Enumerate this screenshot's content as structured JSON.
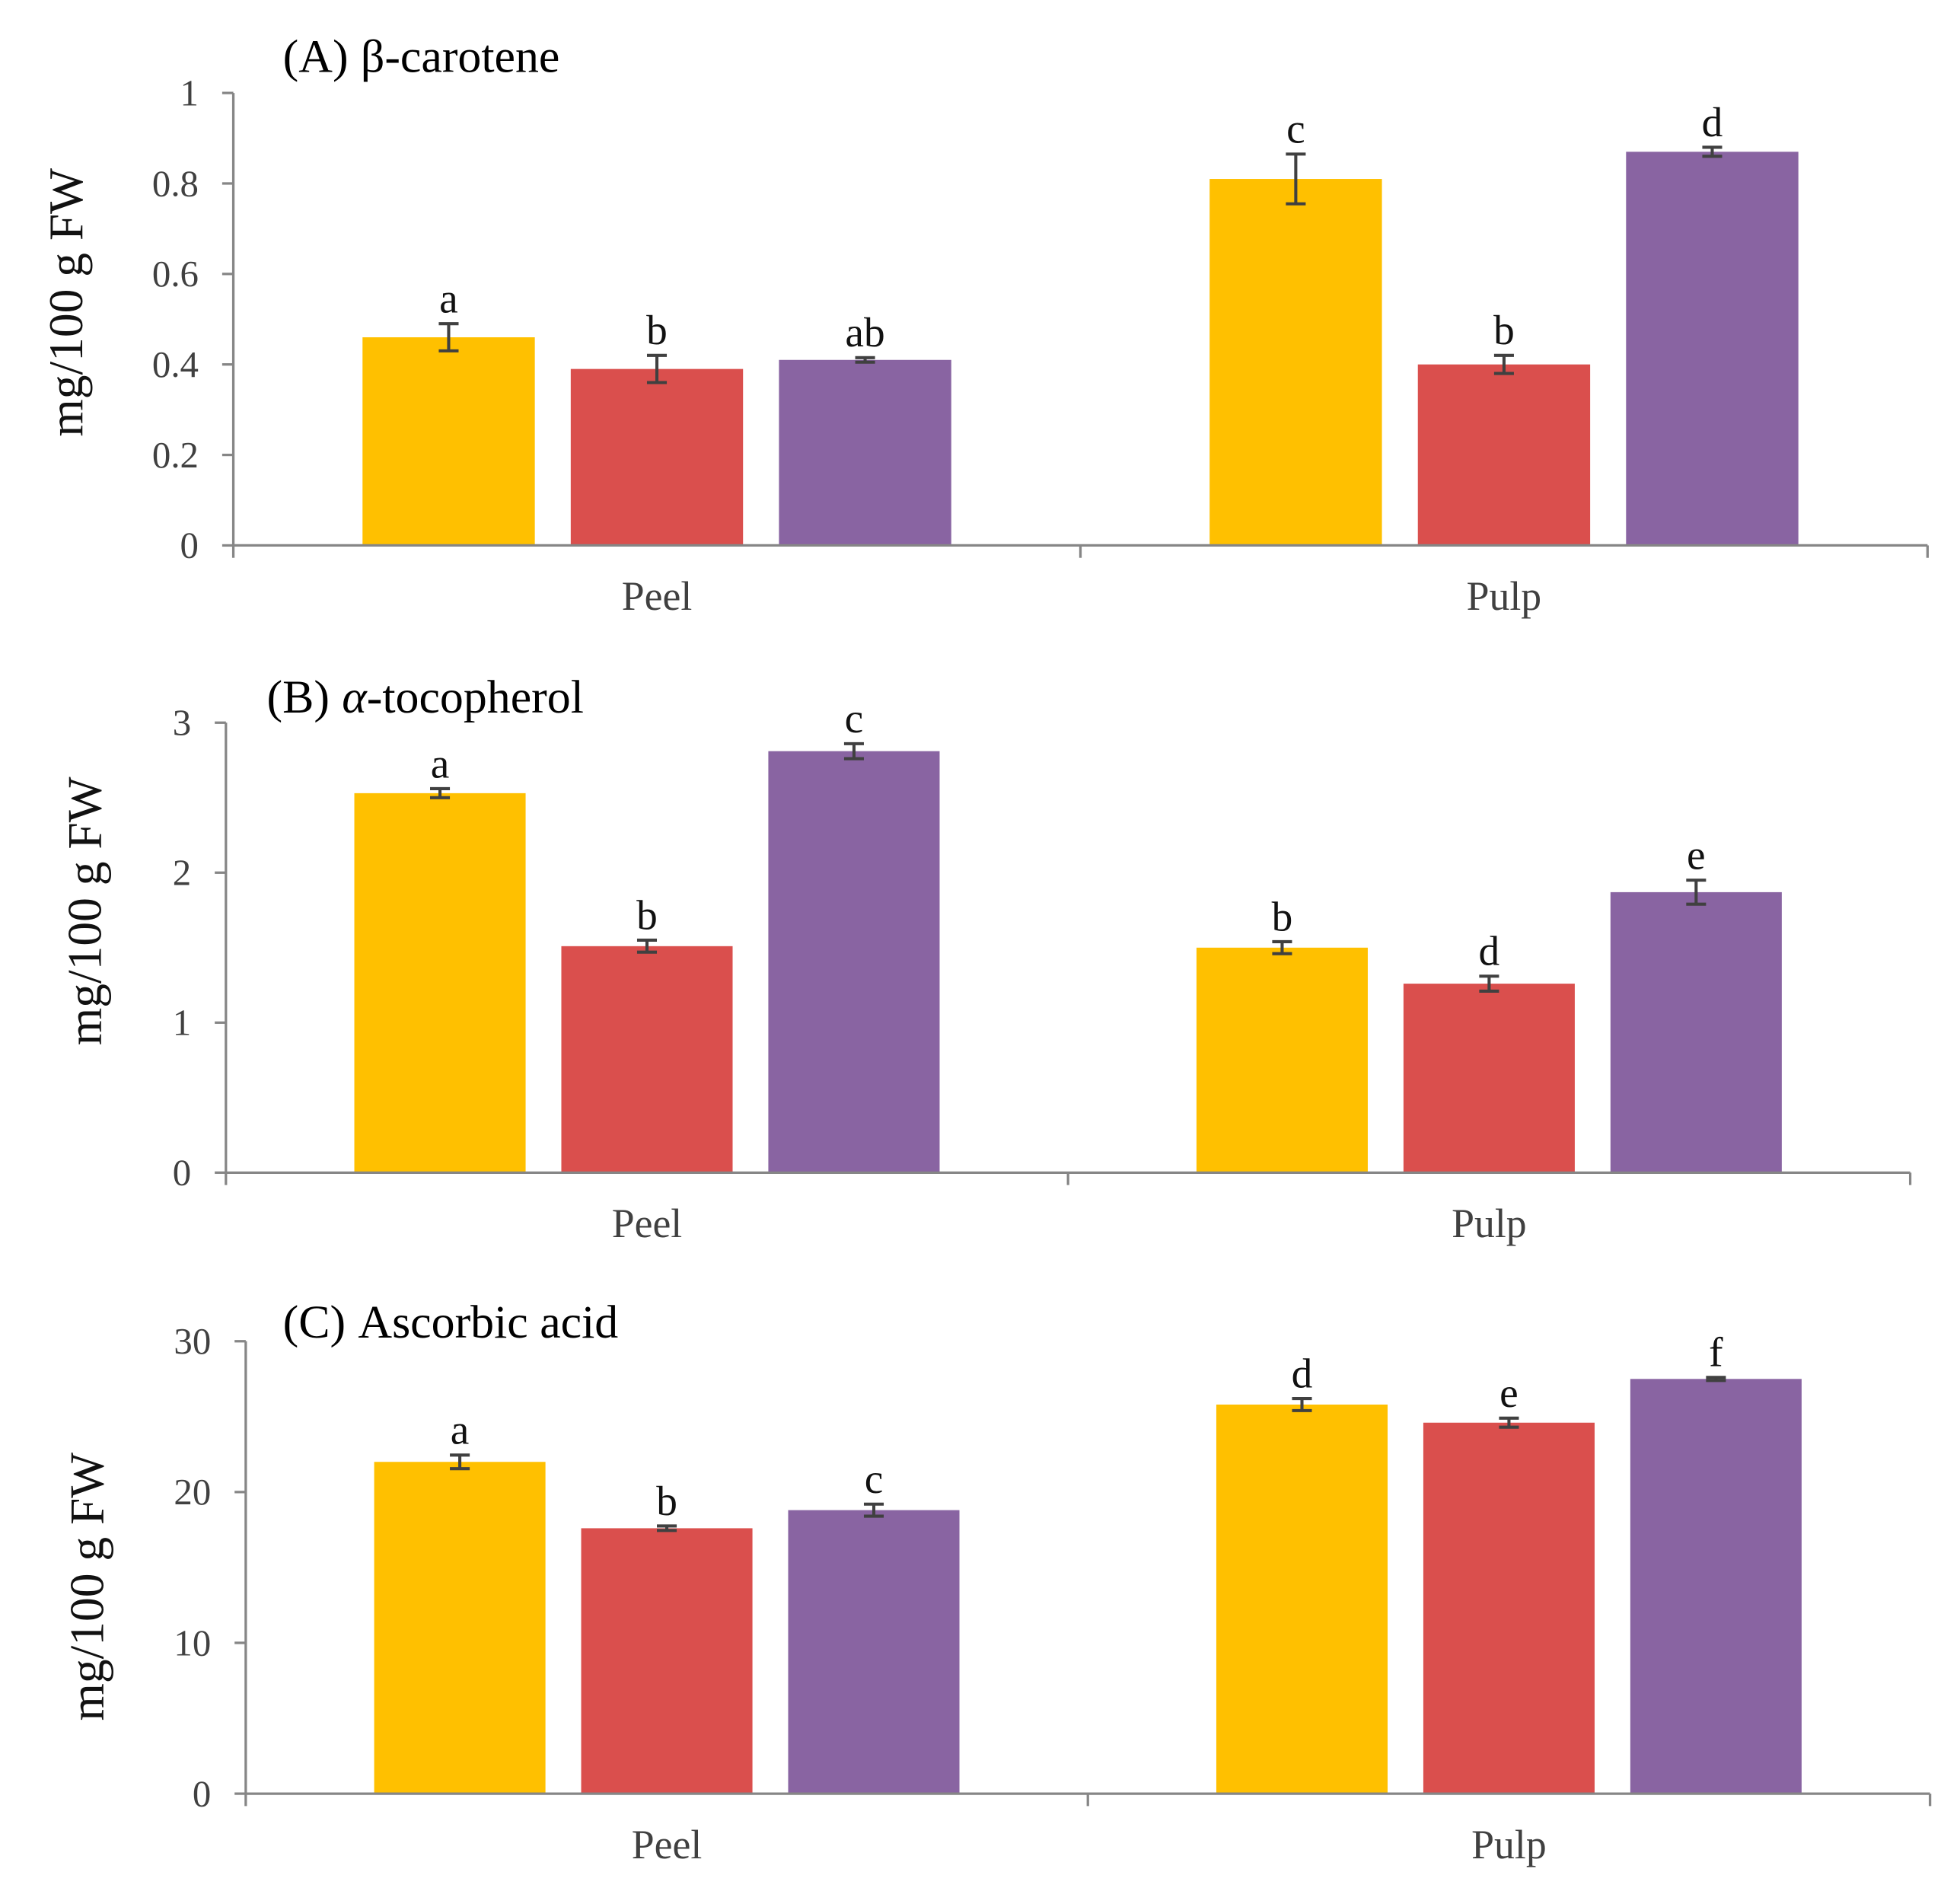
{
  "chart_data": [
    {
      "type": "bar",
      "title_prefix": "(A)",
      "title_symbol": "β",
      "title_text": "-carotene",
      "ylabel": "mg/100 g FW",
      "ylim": [
        0,
        1
      ],
      "yticks": [
        0,
        0.2,
        0.4,
        0.6,
        0.8,
        1
      ],
      "categories": [
        "Peel",
        "Pulp"
      ],
      "series": [
        {
          "color": "#FFC000",
          "values": [
            0.46,
            0.81
          ],
          "errors": [
            0.03,
            0.055
          ],
          "letters": [
            "a",
            "c"
          ]
        },
        {
          "color": "#DA4F4D",
          "values": [
            0.39,
            0.4
          ],
          "errors": [
            0.03,
            0.02
          ],
          "letters": [
            "b",
            "b"
          ]
        },
        {
          "color": "#8964A2",
          "values": [
            0.41,
            0.87
          ],
          "errors": [
            0.005,
            0.01
          ],
          "letters": [
            "ab",
            "d"
          ]
        }
      ]
    },
    {
      "type": "bar",
      "title_prefix": "(B)",
      "title_symbol": "α",
      "title_text": "-tocopherol",
      "ylabel": "mg/100 g FW",
      "ylim": [
        0,
        3
      ],
      "yticks": [
        0,
        1,
        2,
        3
      ],
      "categories": [
        "Peel",
        "Pulp"
      ],
      "series": [
        {
          "color": "#FFC000",
          "values": [
            2.53,
            1.5
          ],
          "errors": [
            0.03,
            0.04
          ],
          "letters": [
            "a",
            "b"
          ]
        },
        {
          "color": "#DA4F4D",
          "values": [
            1.51,
            1.26
          ],
          "errors": [
            0.04,
            0.05
          ],
          "letters": [
            "b",
            "d"
          ]
        },
        {
          "color": "#8964A2",
          "values": [
            2.81,
            1.87
          ],
          "errors": [
            0.05,
            0.08
          ],
          "letters": [
            "c",
            "e"
          ]
        }
      ]
    },
    {
      "type": "bar",
      "title_prefix": "(C)",
      "title_text": "Ascorbic acid",
      "ylabel": "mg/100 g FW",
      "ylim": [
        0,
        30
      ],
      "yticks": [
        0,
        10,
        20,
        30
      ],
      "categories": [
        "Peel",
        "Pulp"
      ],
      "series": [
        {
          "color": "#FFC000",
          "values": [
            22.0,
            25.8
          ],
          "errors": [
            0.45,
            0.4
          ],
          "letters": [
            "a",
            "d"
          ]
        },
        {
          "color": "#DA4F4D",
          "values": [
            17.6,
            24.6
          ],
          "errors": [
            0.15,
            0.3
          ],
          "letters": [
            "b",
            "e"
          ]
        },
        {
          "color": "#8964A2",
          "values": [
            18.8,
            27.5
          ],
          "errors": [
            0.4,
            0.1
          ],
          "letters": [
            "c",
            "f"
          ]
        }
      ]
    }
  ]
}
